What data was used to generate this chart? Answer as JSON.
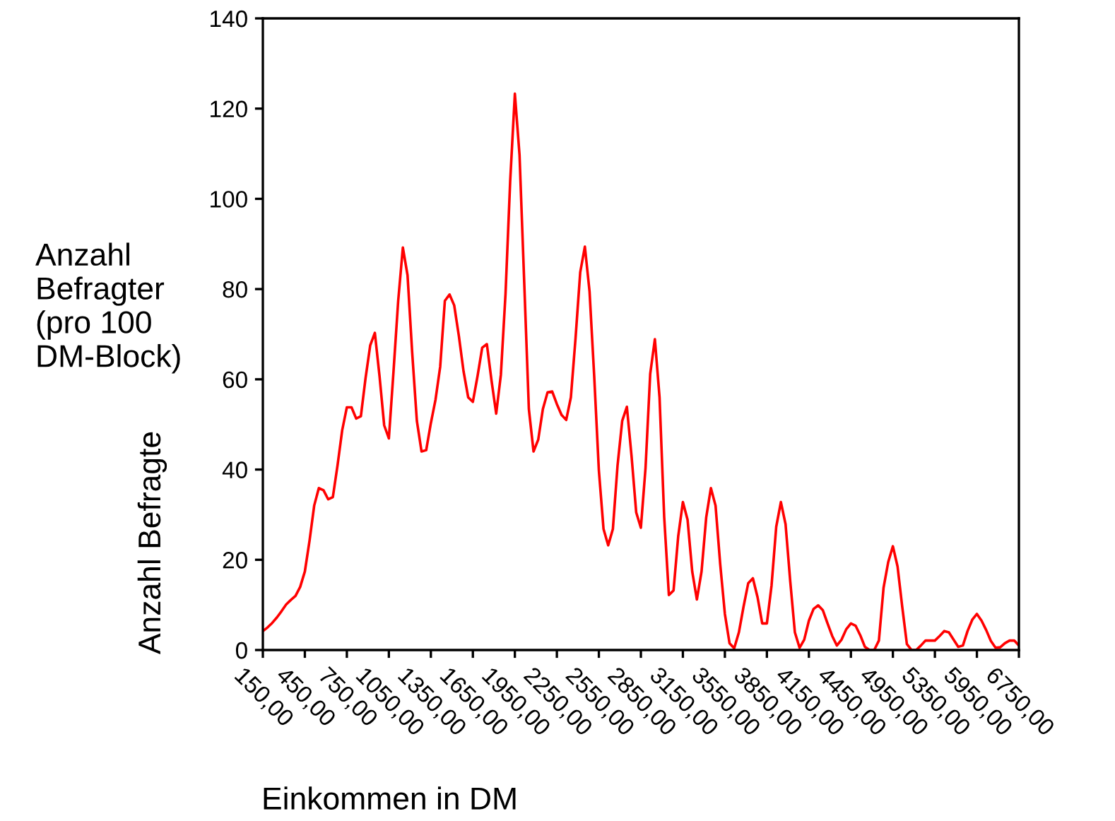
{
  "chart_data": {
    "type": "line",
    "ylabel": "Anzahl Befragte",
    "xlabel": "Einkommen in DM",
    "annotations": [
      "Anzahl\nBefragter\n(pro 100\nDM-Block)"
    ],
    "categories": [
      "150,00",
      null,
      null,
      null,
      null,
      null,
      null,
      null,
      null,
      "450,00",
      null,
      null,
      null,
      null,
      null,
      null,
      null,
      null,
      "750,00",
      null,
      null,
      null,
      null,
      null,
      null,
      null,
      null,
      "1050,00",
      null,
      null,
      null,
      null,
      null,
      null,
      null,
      null,
      "1350,00",
      null,
      null,
      null,
      null,
      null,
      null,
      null,
      null,
      "1650,00",
      null,
      null,
      null,
      null,
      null,
      null,
      null,
      null,
      "1950,00",
      null,
      null,
      null,
      null,
      null,
      null,
      null,
      null,
      "2250,00",
      null,
      null,
      null,
      null,
      null,
      null,
      null,
      null,
      "2550,00",
      null,
      null,
      null,
      null,
      null,
      null,
      null,
      null,
      "2850,00",
      null,
      null,
      null,
      null,
      null,
      null,
      null,
      null,
      "3150,00",
      null,
      null,
      null,
      null,
      null,
      null,
      null,
      null,
      "3550,00",
      null,
      null,
      null,
      null,
      null,
      null,
      null,
      null,
      "3850,00",
      null,
      null,
      null,
      null,
      null,
      null,
      null,
      null,
      "4150,00",
      null,
      null,
      null,
      null,
      null,
      null,
      null,
      null,
      "4450,00",
      null,
      null,
      null,
      null,
      null,
      null,
      null,
      null,
      "4950,00",
      null,
      null,
      null,
      null,
      null,
      null,
      null,
      null,
      "5350,00",
      null,
      null,
      null,
      null,
      null,
      null,
      null,
      null,
      "5950,00",
      null,
      null,
      null,
      null,
      null,
      null,
      null,
      null,
      "6750,00"
    ],
    "ylim": [
      0,
      140
    ],
    "yticks": [
      0,
      20,
      40,
      60,
      80,
      100,
      120,
      140
    ],
    "grid": false,
    "marker": "none",
    "line_style": "solid",
    "series": [
      {
        "color": "#ff0000",
        "values": [
          4.2,
          5.0,
          6.0,
          7.2,
          8.6,
          10.1,
          11.1,
          12.0,
          14.0,
          17.4,
          24.2,
          32.0,
          35.9,
          35.4,
          33.4,
          33.9,
          40.9,
          48.7,
          53.8,
          53.8,
          51.3,
          51.8,
          60.2,
          67.5,
          70.3,
          60.7,
          49.8,
          46.9,
          61.8,
          77.4,
          89.2,
          83.1,
          65.9,
          50.8,
          44.0,
          44.3,
          50.3,
          55.5,
          62.8,
          77.4,
          78.8,
          76.4,
          69.6,
          61.8,
          56.0,
          55.0,
          60.7,
          67.0,
          67.8,
          59.7,
          52.4,
          61.0,
          79.0,
          104.0,
          123.3,
          109.7,
          81.6,
          53.4,
          44.0,
          46.6,
          53.4,
          57.1,
          57.3,
          54.5,
          52.1,
          51.0,
          56.0,
          69.1,
          83.7,
          89.4,
          79.5,
          60.7,
          39.8,
          26.8,
          23.2,
          26.8,
          40.9,
          50.8,
          53.9,
          43.0,
          30.5,
          27.1,
          40.4,
          61.2,
          68.9,
          56.0,
          29.4,
          12.2,
          13.2,
          25.2,
          32.8,
          28.9,
          17.4,
          11.2,
          17.4,
          29.4,
          35.9,
          32.0,
          19.0,
          8.0,
          1.5,
          0.4,
          3.9,
          9.6,
          14.8,
          15.9,
          11.7,
          5.9,
          5.9,
          14.3,
          27.3,
          32.8,
          27.9,
          15.3,
          3.9,
          0.5,
          2.3,
          6.5,
          9.1,
          9.9,
          8.8,
          5.9,
          3.1,
          1.0,
          2.3,
          4.6,
          5.9,
          5.4,
          3.3,
          0.7,
          0,
          0,
          2.1,
          13.8,
          19.5,
          23.0,
          18.5,
          9.6,
          1.3,
          0,
          0,
          1.0,
          2.1,
          2.1,
          2.1,
          3.1,
          4.2,
          3.9,
          2.3,
          0.7,
          1.0,
          4.2,
          6.7,
          8.0,
          6.5,
          4.4,
          2.0,
          0.5,
          0.6,
          1.5,
          2.1,
          2.1,
          1.0
        ]
      }
    ]
  }
}
